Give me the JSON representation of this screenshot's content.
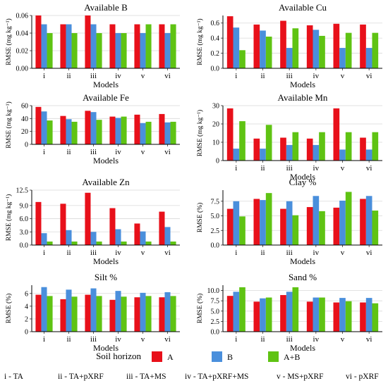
{
  "colors": {
    "A": "#e8101a",
    "B": "#4a8fdc",
    "A+B": "#5fc313"
  },
  "chart_data": [
    {
      "type": "bar",
      "title": "Available B",
      "xlabel": "Models",
      "ylabel": "RMSE (mg kg⁻¹)",
      "categories": [
        "i",
        "ii",
        "iii",
        "iv",
        "v",
        "vi"
      ],
      "ylim": [
        0,
        0.06
      ],
      "yticks": [
        "0.00",
        "0.02",
        "0.04",
        "0.06"
      ],
      "yticks_values": [
        0,
        0.02,
        0.04,
        0.06
      ],
      "grid": true,
      "series": [
        {
          "name": "A",
          "values": [
            0.06,
            0.05,
            0.06,
            0.05,
            0.05,
            0.05
          ]
        },
        {
          "name": "B",
          "values": [
            0.05,
            0.05,
            0.05,
            0.04,
            0.04,
            0.04
          ]
        },
        {
          "name": "A+B",
          "values": [
            0.04,
            0.04,
            0.04,
            0.04,
            0.05,
            0.05
          ]
        }
      ]
    },
    {
      "type": "bar",
      "title": "Available Cu",
      "xlabel": "Models",
      "ylabel": "RMSE (mg kg⁻¹)",
      "categories": [
        "i",
        "ii",
        "iii",
        "iv",
        "v",
        "vi"
      ],
      "ylim": [
        0,
        0.7
      ],
      "yticks": [
        "0.0",
        "0.2",
        "0.4",
        "0.6"
      ],
      "yticks_values": [
        0,
        0.2,
        0.4,
        0.6
      ],
      "grid": true,
      "series": [
        {
          "name": "A",
          "values": [
            0.69,
            0.58,
            0.63,
            0.57,
            0.59,
            0.58
          ]
        },
        {
          "name": "B",
          "values": [
            0.54,
            0.5,
            0.27,
            0.51,
            0.27,
            0.27
          ]
        },
        {
          "name": "A+B",
          "values": [
            0.24,
            0.42,
            0.53,
            0.43,
            0.47,
            0.47
          ]
        }
      ]
    },
    {
      "type": "bar",
      "title": "Available Fe",
      "xlabel": "Models",
      "ylabel": "RMSE (mg kg⁻¹)",
      "categories": [
        "i",
        "ii",
        "iii",
        "iv",
        "v",
        "vi"
      ],
      "ylim": [
        0,
        60
      ],
      "yticks": [
        "0",
        "20",
        "40",
        "60"
      ],
      "yticks_values": [
        0,
        20,
        40,
        60
      ],
      "grid": true,
      "series": [
        {
          "name": "A",
          "values": [
            58,
            44,
            52,
            43,
            46,
            47
          ]
        },
        {
          "name": "B",
          "values": [
            51,
            39,
            50,
            41,
            33,
            34
          ]
        },
        {
          "name": "A+B",
          "values": [
            37,
            35,
            38,
            43,
            35,
            35
          ]
        }
      ]
    },
    {
      "type": "bar",
      "title": "Available Mn",
      "xlabel": "Models",
      "ylabel": "RMSE (mg kg⁻¹)",
      "categories": [
        "i",
        "ii",
        "iii",
        "iv",
        "v",
        "vi"
      ],
      "ylim": [
        0,
        30
      ],
      "yticks": [
        "0",
        "10",
        "20",
        "30"
      ],
      "yticks_values": [
        0,
        10,
        20,
        30
      ],
      "grid": true,
      "series": [
        {
          "name": "A",
          "values": [
            28.5,
            12,
            12.5,
            12,
            28.5,
            12.5
          ]
        },
        {
          "name": "B",
          "values": [
            6.5,
            6.5,
            8.5,
            8.5,
            6,
            6
          ]
        },
        {
          "name": "A+B",
          "values": [
            21.5,
            19.5,
            15.5,
            15.5,
            15.5,
            15.5
          ]
        }
      ]
    },
    {
      "type": "bar",
      "title": "Available Zn",
      "xlabel": "Models",
      "ylabel": "RMSE (mg kg⁻¹)",
      "categories": [
        "i",
        "ii",
        "iii",
        "iv",
        "v",
        "vi"
      ],
      "ylim": [
        0,
        12.5
      ],
      "yticks": [
        "0.0",
        "3.0",
        "6.0",
        "9.0",
        "12.5"
      ],
      "yticks_values": [
        0,
        3,
        6,
        9,
        12.5
      ],
      "grid": true,
      "series": [
        {
          "name": "A",
          "values": [
            9.8,
            9.4,
            11.9,
            8.4,
            4.9,
            7.6
          ]
        },
        {
          "name": "B",
          "values": [
            2.7,
            3.4,
            3.0,
            3.6,
            3.1,
            4.1
          ]
        },
        {
          "name": "A+B",
          "values": [
            0.8,
            0.8,
            0.8,
            0.8,
            0.8,
            0.8
          ]
        }
      ]
    },
    {
      "type": "bar",
      "title": "Clay %",
      "xlabel": "Models",
      "ylabel": "RMSE (%)",
      "categories": [
        "i",
        "ii",
        "iii",
        "iv",
        "v",
        "vi"
      ],
      "ylim": [
        0,
        9.4
      ],
      "yticks": [
        "0.0",
        "2.5",
        "5.0",
        "7.5"
      ],
      "yticks_values": [
        0,
        2.5,
        5,
        7.5
      ],
      "grid": true,
      "series": [
        {
          "name": "A",
          "values": [
            6.2,
            7.9,
            6.2,
            6.5,
            6.4,
            7.9
          ]
        },
        {
          "name": "B",
          "values": [
            7.5,
            7.7,
            7.5,
            8.4,
            7.6,
            8.4
          ]
        },
        {
          "name": "A+B",
          "values": [
            4.9,
            8.9,
            5.1,
            5.8,
            9.1,
            5.9
          ]
        }
      ]
    },
    {
      "type": "bar",
      "title": "Silt %",
      "xlabel": "Models",
      "ylabel": "RMSE (%)",
      "categories": [
        "i",
        "ii",
        "iii",
        "iv",
        "v",
        "vi"
      ],
      "ylim": [
        0,
        7.3
      ],
      "yticks": [
        "0",
        "2",
        "4",
        "6"
      ],
      "yticks_values": [
        0,
        2,
        4,
        6
      ],
      "grid": true,
      "series": [
        {
          "name": "A",
          "values": [
            5.8,
            5.1,
            5.8,
            5.0,
            5.4,
            5.4
          ]
        },
        {
          "name": "B",
          "values": [
            7.0,
            6.6,
            6.8,
            6.4,
            6.1,
            6.2
          ]
        },
        {
          "name": "A+B",
          "values": [
            5.6,
            5.5,
            5.6,
            5.5,
            5.6,
            5.6
          ]
        }
      ]
    },
    {
      "type": "bar",
      "title": "Sand %",
      "xlabel": "Models",
      "ylabel": "RMSE (%)",
      "categories": [
        "i",
        "ii",
        "iii",
        "iv",
        "v",
        "vi"
      ],
      "ylim": [
        0,
        11.3
      ],
      "yticks": [
        "0.0",
        "2.5",
        "5.0",
        "7.5",
        "10.0"
      ],
      "yticks_values": [
        0,
        2.5,
        5,
        7.5,
        10
      ],
      "grid": true,
      "series": [
        {
          "name": "A",
          "values": [
            8.7,
            7.3,
            8.9,
            7.3,
            7.1,
            7.1
          ]
        },
        {
          "name": "B",
          "values": [
            9.7,
            8.1,
            9.7,
            8.3,
            8.2,
            8.2
          ]
        },
        {
          "name": "A+B",
          "values": [
            10.8,
            8.3,
            10.8,
            8.3,
            7.4,
            6.9
          ]
        }
      ]
    }
  ],
  "legend": {
    "title": "Soil horizon",
    "items": [
      "A",
      "B",
      "A+B"
    ]
  },
  "model_key": [
    "i - TA",
    "ii - TA+pXRF",
    "iii - TA+MS",
    "iv - TA+pXRF+MS",
    "v - MS+pXRF",
    "vi - pXRF"
  ]
}
